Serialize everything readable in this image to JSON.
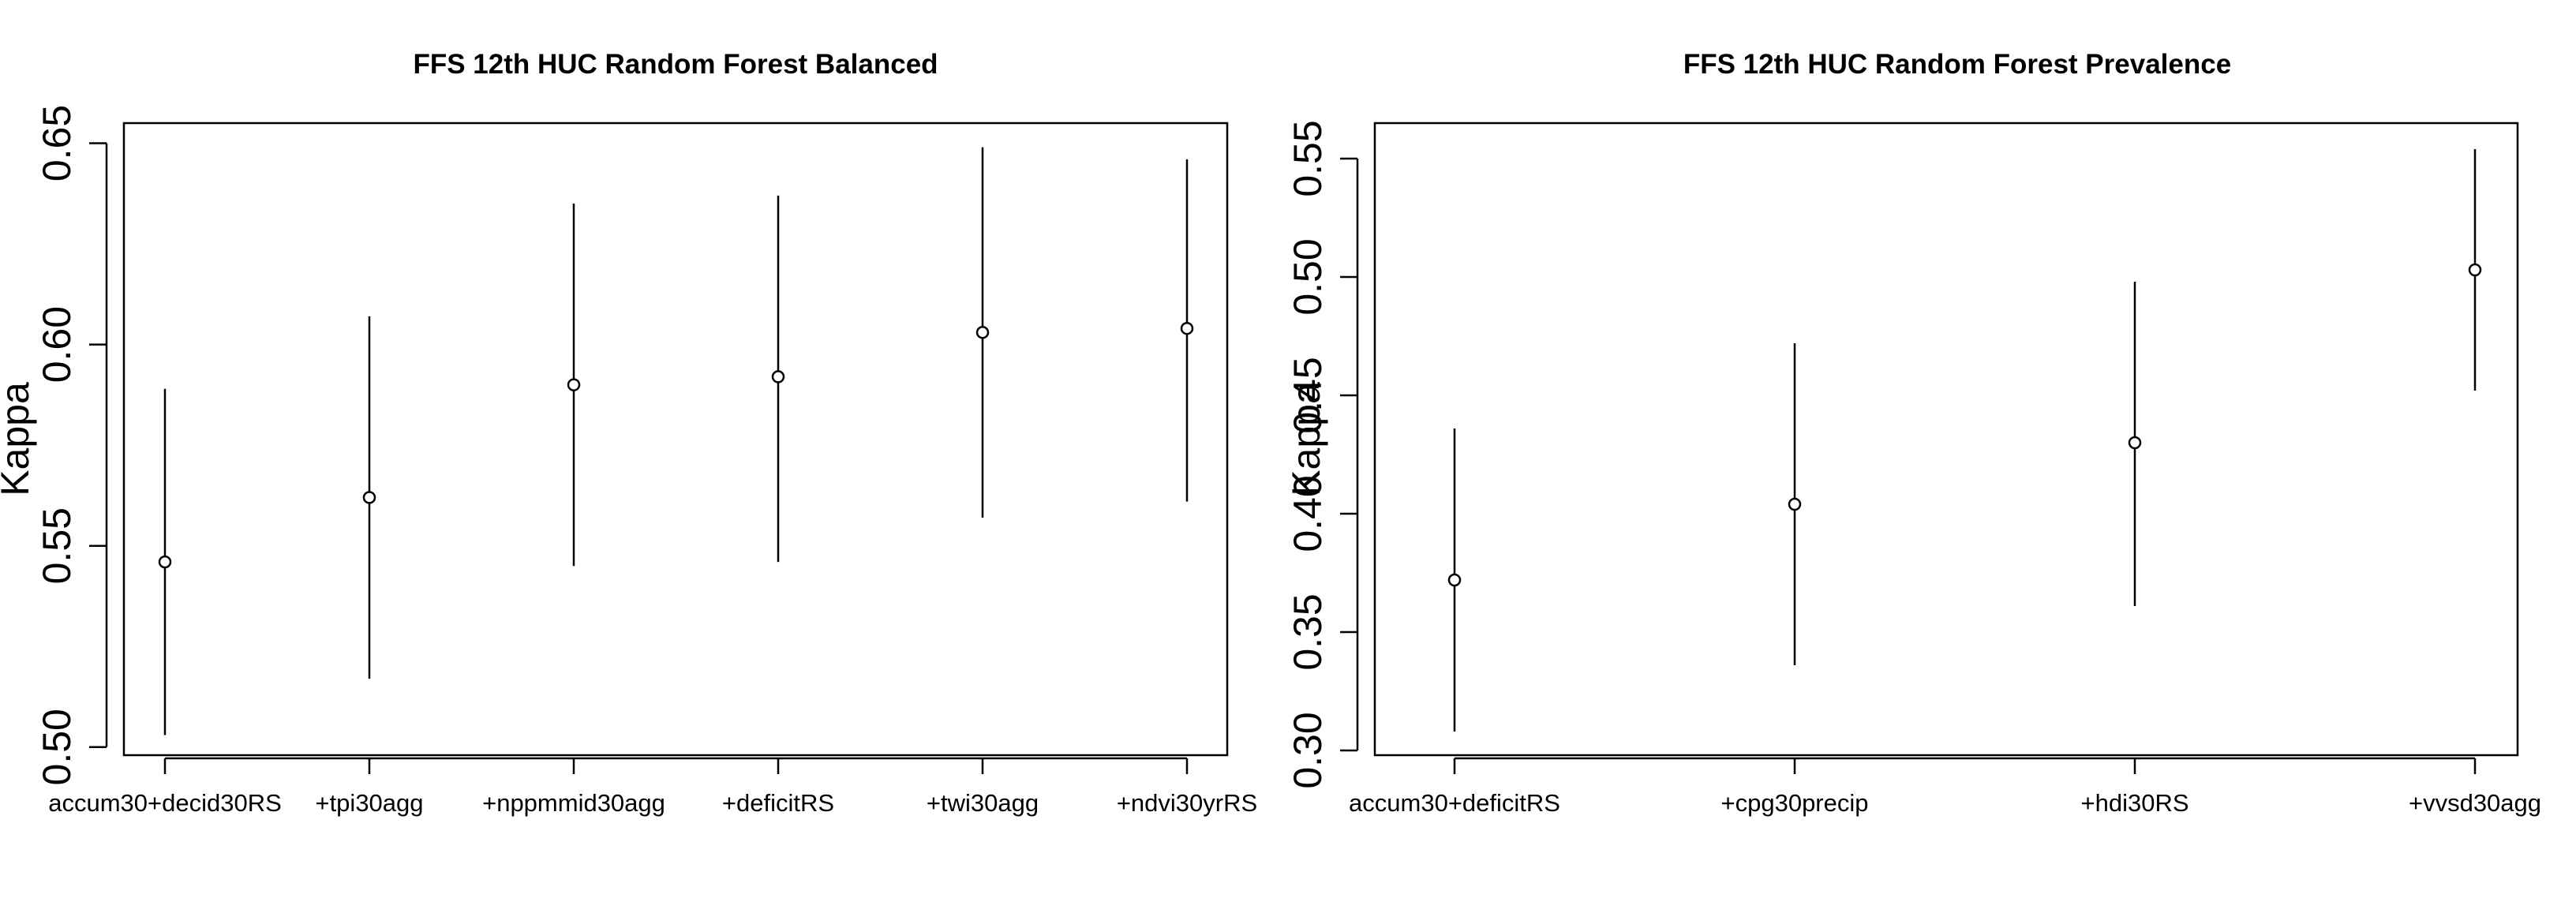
{
  "chart_data": [
    {
      "type": "scatter",
      "style": "point-with-error-bars",
      "title": "FFS 12th HUC Random Forest Balanced",
      "xlabel": "",
      "ylabel": "Kappa",
      "categories": [
        "accum30+decid30RS",
        "+tpi30agg",
        "+nppmmid30agg",
        "+deficitRS",
        "+twi30agg",
        "+ndvi30yrRS"
      ],
      "values": [
        0.546,
        0.562,
        0.59,
        0.592,
        0.603,
        0.604
      ],
      "lower": [
        0.503,
        0.517,
        0.545,
        0.546,
        0.557,
        0.561
      ],
      "upper": [
        0.589,
        0.607,
        0.635,
        0.637,
        0.649,
        0.646
      ],
      "ylim": [
        0.498,
        0.655
      ],
      "yticks": [
        "0.50",
        "0.55",
        "0.60",
        "0.65"
      ],
      "grid": false,
      "legend": "none"
    },
    {
      "type": "scatter",
      "style": "point-with-error-bars",
      "title": "FFS 12th HUC Random Forest Prevalence",
      "xlabel": "",
      "ylabel": "Kappa",
      "categories": [
        "accum30+deficitRS",
        "+cpg30precip",
        "+hdi30RS",
        "+vvsd30agg"
      ],
      "values": [
        0.372,
        0.404,
        0.43,
        0.503
      ],
      "lower": [
        0.308,
        0.336,
        0.361,
        0.452
      ],
      "upper": [
        0.436,
        0.472,
        0.498,
        0.554
      ],
      "ylim": [
        0.298,
        0.565
      ],
      "yticks": [
        "0.30",
        "0.35",
        "0.40",
        "0.45",
        "0.50",
        "0.55"
      ],
      "grid": false,
      "legend": "none"
    }
  ]
}
